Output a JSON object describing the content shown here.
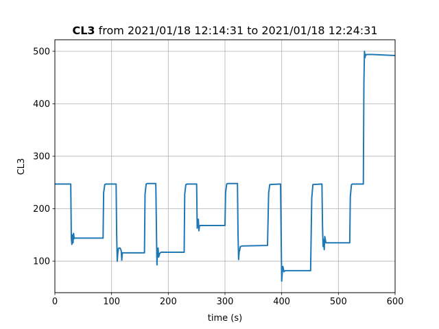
{
  "chart_data": {
    "type": "line",
    "title_bold": "CL3",
    "title_rest": " from 2021/01/18 12:14:31 to 2021/01/18 12:24:31",
    "xlabel": "time (s)",
    "ylabel": "CL3",
    "xlim": [
      0,
      600
    ],
    "ylim": [
      40,
      522
    ],
    "xticks": [
      0,
      100,
      200,
      300,
      400,
      500,
      600
    ],
    "yticks": [
      100,
      200,
      300,
      400,
      500
    ],
    "grid": true,
    "line_color": "#1f77b4",
    "series": [
      {
        "x": [
          0,
          28,
          29,
          30,
          31,
          32,
          33,
          34,
          35,
          40,
          85,
          86,
          88,
          90,
          108,
          109,
          110,
          111,
          112,
          113,
          115,
          117,
          118,
          119,
          120,
          158,
          159,
          161,
          163,
          178,
          179,
          180,
          181,
          182,
          183,
          185,
          187,
          188,
          228,
          229,
          231,
          233,
          250,
          251,
          252,
          253,
          254,
          255,
          256,
          258,
          260,
          300,
          301,
          303,
          305,
          322,
          323,
          324,
          325,
          326,
          327,
          328,
          330,
          374,
          375,
          377,
          379,
          397,
          398,
          399,
          400,
          401,
          402,
          404,
          406,
          408,
          450,
          451,
          453,
          455,
          470,
          471,
          472,
          473,
          474,
          475,
          476,
          478,
          480,
          520,
          521,
          523,
          525,
          544,
          545,
          546,
          547,
          548,
          549,
          550,
          560,
          600
        ],
        "y": [
          247,
          247,
          145,
          132,
          150,
          135,
          153,
          143,
          144,
          144,
          144,
          230,
          246,
          247,
          247,
          150,
          100,
          115,
          124,
          125,
          125,
          120,
          102,
          116,
          116,
          116,
          228,
          247,
          248,
          248,
          170,
          93,
          116,
          125,
          108,
          115,
          117,
          117,
          117,
          228,
          246,
          247,
          247,
          163,
          172,
          180,
          158,
          167,
          168,
          168,
          168,
          168,
          230,
          247,
          248,
          248,
          152,
          103,
          118,
          121,
          128,
          128,
          129,
          130,
          130,
          230,
          246,
          247,
          247,
          152,
          62,
          78,
          90,
          80,
          82,
          82,
          82,
          82,
          220,
          246,
          247,
          247,
          166,
          128,
          141,
          122,
          147,
          135,
          135,
          135,
          222,
          246,
          247,
          247,
          440,
          500,
          488,
          494,
          493,
          494,
          494,
          492
        ]
      }
    ]
  }
}
